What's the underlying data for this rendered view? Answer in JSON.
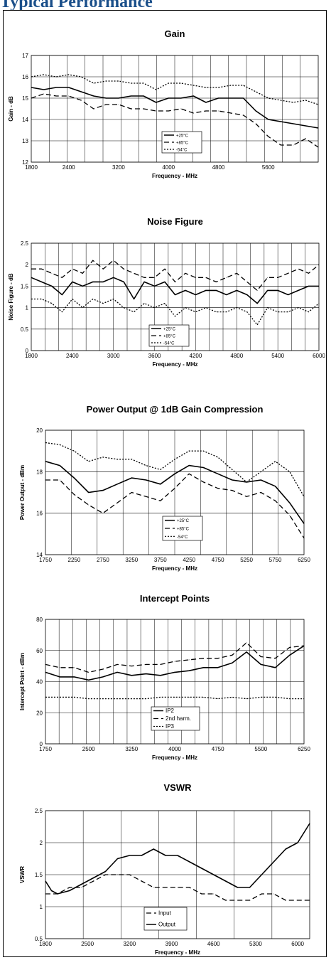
{
  "page": {
    "heading": "Typical Performance"
  },
  "chart_data": [
    {
      "type": "line",
      "title": "Gain",
      "xlabel": "Frequency - MHz",
      "ylabel": "Gain - dB",
      "xlim": [
        1800,
        6400
      ],
      "ylim": [
        12,
        17
      ],
      "xticks": [
        1800,
        2400,
        3200,
        4000,
        4800,
        5600
      ],
      "yticks": [
        12,
        13,
        14,
        15,
        16,
        17
      ],
      "grid": true,
      "legend_position": "bottom-center",
      "series": [
        {
          "name": "+25°C",
          "style": "solid",
          "x": [
            1800,
            2000,
            2200,
            2400,
            2600,
            2800,
            3000,
            3200,
            3400,
            3600,
            3800,
            4000,
            4200,
            4400,
            4600,
            4800,
            5000,
            5200,
            5400,
            5600,
            5800,
            6000,
            6200,
            6400
          ],
          "y": [
            15.5,
            15.4,
            15.5,
            15.5,
            15.3,
            15.1,
            15.0,
            15.0,
            15.1,
            15.1,
            14.8,
            15.0,
            15.0,
            15.1,
            14.8,
            15.0,
            15.0,
            15.0,
            14.4,
            14.0,
            13.9,
            13.8,
            13.7,
            13.6
          ]
        },
        {
          "name": "+85°C",
          "style": "dashed",
          "x": [
            1800,
            2000,
            2200,
            2400,
            2600,
            2800,
            3000,
            3200,
            3400,
            3600,
            3800,
            4000,
            4200,
            4400,
            4600,
            4800,
            5000,
            5200,
            5400,
            5600,
            5800,
            6000,
            6200,
            6400
          ],
          "y": [
            15.0,
            15.2,
            15.1,
            15.1,
            14.9,
            14.5,
            14.7,
            14.7,
            14.5,
            14.5,
            14.4,
            14.4,
            14.5,
            14.3,
            14.4,
            14.4,
            14.3,
            14.2,
            13.8,
            13.2,
            12.8,
            12.8,
            13.1,
            12.7
          ]
        },
        {
          "name": "-54°C",
          "style": "dotted",
          "x": [
            1800,
            2000,
            2200,
            2400,
            2600,
            2800,
            3000,
            3200,
            3400,
            3600,
            3800,
            4000,
            4200,
            4400,
            4600,
            4800,
            5000,
            5200,
            5400,
            5600,
            5800,
            6000,
            6200,
            6400
          ],
          "y": [
            16.0,
            16.1,
            16.0,
            16.1,
            16.0,
            15.7,
            15.8,
            15.8,
            15.7,
            15.7,
            15.4,
            15.7,
            15.7,
            15.6,
            15.5,
            15.5,
            15.6,
            15.6,
            15.3,
            15.0,
            14.9,
            14.8,
            14.9,
            14.7
          ]
        }
      ]
    },
    {
      "type": "line",
      "title": "Noise Figure",
      "xlabel": "Frequency - MHz",
      "ylabel": "Noise Figure - dB",
      "xlim": [
        1800,
        6000
      ],
      "ylim": [
        0,
        2.5
      ],
      "xticks": [
        1800,
        2400,
        3000,
        3600,
        4200,
        4800,
        5400,
        6000
      ],
      "yticks": [
        0,
        0.5,
        1,
        1.5,
        2,
        2.5
      ],
      "grid": true,
      "legend_position": "bottom-center",
      "series": [
        {
          "name": "+25°C",
          "style": "solid",
          "x": [
            1800,
            1950,
            2100,
            2250,
            2400,
            2550,
            2700,
            2850,
            3000,
            3150,
            3300,
            3450,
            3600,
            3750,
            3900,
            4050,
            4200,
            4350,
            4500,
            4650,
            4800,
            4950,
            5100,
            5250,
            5400,
            5550,
            5700,
            5850,
            6000
          ],
          "y": [
            1.7,
            1.6,
            1.5,
            1.3,
            1.6,
            1.5,
            1.6,
            1.6,
            1.7,
            1.6,
            1.2,
            1.6,
            1.5,
            1.6,
            1.3,
            1.4,
            1.3,
            1.4,
            1.4,
            1.3,
            1.4,
            1.3,
            1.1,
            1.4,
            1.4,
            1.3,
            1.4,
            1.5,
            1.5
          ]
        },
        {
          "name": "+85°C",
          "style": "dashed",
          "x": [
            1800,
            1950,
            2100,
            2250,
            2400,
            2550,
            2700,
            2850,
            3000,
            3150,
            3300,
            3450,
            3600,
            3750,
            3900,
            4050,
            4200,
            4350,
            4500,
            4650,
            4800,
            4950,
            5100,
            5250,
            5400,
            5550,
            5700,
            5850,
            6000
          ],
          "y": [
            1.9,
            1.9,
            1.8,
            1.7,
            1.9,
            1.8,
            2.1,
            1.9,
            2.1,
            1.9,
            1.8,
            1.7,
            1.7,
            1.9,
            1.6,
            1.8,
            1.7,
            1.7,
            1.6,
            1.7,
            1.8,
            1.6,
            1.4,
            1.7,
            1.7,
            1.8,
            1.9,
            1.8,
            2.0
          ]
        },
        {
          "name": "-54°C",
          "style": "dotted",
          "x": [
            1800,
            1950,
            2100,
            2250,
            2400,
            2550,
            2700,
            2850,
            3000,
            3150,
            3300,
            3450,
            3600,
            3750,
            3900,
            4050,
            4200,
            4350,
            4500,
            4650,
            4800,
            4950,
            5100,
            5250,
            5400,
            5550,
            5700,
            5850,
            6000
          ],
          "y": [
            1.2,
            1.2,
            1.1,
            0.9,
            1.2,
            1.0,
            1.2,
            1.1,
            1.2,
            1.0,
            0.9,
            1.1,
            1.0,
            1.1,
            0.8,
            1.0,
            0.9,
            1.0,
            0.9,
            0.9,
            1.0,
            0.9,
            0.6,
            1.0,
            0.9,
            0.9,
            1.0,
            0.9,
            1.1
          ]
        }
      ]
    },
    {
      "type": "line",
      "title": "Power Output @ 1dB Gain Compression",
      "xlabel": "Frequency - MHz",
      "ylabel": "Power Output - dBm",
      "xlim": [
        1750,
        6250
      ],
      "ylim": [
        14,
        20
      ],
      "xticks": [
        1750,
        2250,
        2750,
        3250,
        3750,
        4250,
        4750,
        5250,
        5750,
        6250
      ],
      "yticks": [
        14,
        16,
        18,
        20
      ],
      "grid": true,
      "legend_position": "bottom-center",
      "series": [
        {
          "name": "+25°C",
          "style": "solid",
          "x": [
            1750,
            2000,
            2250,
            2500,
            2750,
            3000,
            3250,
            3500,
            3750,
            4000,
            4250,
            4500,
            4750,
            5000,
            5250,
            5500,
            5750,
            6000,
            6250
          ],
          "y": [
            18.5,
            18.3,
            17.7,
            17.0,
            17.1,
            17.4,
            17.7,
            17.6,
            17.4,
            17.9,
            18.3,
            18.2,
            17.9,
            17.6,
            17.5,
            17.6,
            17.3,
            16.5,
            15.5
          ]
        },
        {
          "name": "+85°C",
          "style": "dashed",
          "x": [
            1750,
            2000,
            2250,
            2500,
            2750,
            3000,
            3250,
            3500,
            3750,
            4000,
            4250,
            4500,
            4750,
            5000,
            5250,
            5500,
            5750,
            6000,
            6250
          ],
          "y": [
            17.6,
            17.6,
            16.9,
            16.4,
            16.0,
            16.5,
            17.0,
            16.8,
            16.6,
            17.2,
            17.9,
            17.5,
            17.2,
            17.1,
            16.8,
            17.0,
            16.6,
            15.9,
            14.8
          ]
        },
        {
          "name": "-54°C",
          "style": "dotted",
          "x": [
            1750,
            2000,
            2250,
            2500,
            2750,
            3000,
            3250,
            3500,
            3750,
            4000,
            4250,
            4500,
            4750,
            5000,
            5250,
            5500,
            5750,
            6000,
            6250
          ],
          "y": [
            19.4,
            19.3,
            19.0,
            18.5,
            18.7,
            18.6,
            18.6,
            18.3,
            18.1,
            18.6,
            19.0,
            19.0,
            18.7,
            18.1,
            17.5,
            18.0,
            18.5,
            18.0,
            16.8
          ]
        }
      ]
    },
    {
      "type": "line",
      "title": "Intercept Points",
      "xlabel": "Frequency - MHz",
      "ylabel": "Intercept Point - dBm",
      "xlim": [
        1750,
        6250
      ],
      "ylim": [
        0,
        80
      ],
      "xticks": [
        1750,
        2500,
        3250,
        4000,
        4750,
        5500,
        6250
      ],
      "yticks": [
        0,
        20,
        40,
        60,
        80
      ],
      "grid": true,
      "legend_position": "bottom-center",
      "series": [
        {
          "name": "IP2",
          "style": "solid",
          "x": [
            1750,
            2000,
            2250,
            2500,
            2750,
            3000,
            3250,
            3500,
            3750,
            4000,
            4250,
            4500,
            4750,
            5000,
            5250,
            5500,
            5750,
            6000,
            6250
          ],
          "y": [
            46,
            43,
            43,
            41,
            43,
            46,
            44,
            45,
            44,
            46,
            47,
            49,
            49,
            52,
            59,
            51,
            49,
            57,
            63
          ]
        },
        {
          "name": "2nd harm.",
          "style": "dashed",
          "x": [
            1750,
            2000,
            2250,
            2500,
            2750,
            3000,
            3250,
            3500,
            3750,
            4000,
            4250,
            4500,
            4750,
            5000,
            5250,
            5500,
            5750,
            6000,
            6250
          ],
          "y": [
            51,
            49,
            49,
            46,
            48,
            51,
            50,
            51,
            51,
            53,
            54,
            55,
            55,
            57,
            65,
            56,
            55,
            62,
            63
          ]
        },
        {
          "name": "IP3",
          "style": "dotted",
          "x": [
            1750,
            2000,
            2250,
            2500,
            2750,
            3000,
            3250,
            3500,
            3750,
            4000,
            4250,
            4500,
            4750,
            5000,
            5250,
            5500,
            5750,
            6000,
            6250
          ],
          "y": [
            30,
            30,
            30,
            29,
            29,
            29,
            29,
            29,
            30,
            30,
            30,
            30,
            29,
            30,
            29,
            30,
            30,
            29,
            29
          ]
        }
      ]
    },
    {
      "type": "line",
      "title": "VSWR",
      "xlabel": "Frequency - MHz",
      "ylabel": "VSWR",
      "xlim": [
        1800,
        6200
      ],
      "ylim": [
        0.5,
        2.5
      ],
      "xticks": [
        1800,
        2500,
        3200,
        3900,
        4600,
        5300,
        6000
      ],
      "yticks": [
        0.5,
        1,
        1.5,
        2,
        2.5
      ],
      "grid": true,
      "legend_position": "bottom-center",
      "series": [
        {
          "name": "Input",
          "style": "dashed",
          "x": [
            1800,
            2000,
            2200,
            2400,
            2600,
            2800,
            3000,
            3200,
            3400,
            3600,
            3800,
            4000,
            4200,
            4400,
            4600,
            4800,
            5000,
            5200,
            5400,
            5600,
            5800,
            6000,
            6200
          ],
          "y": [
            1.2,
            1.2,
            1.3,
            1.3,
            1.4,
            1.5,
            1.5,
            1.5,
            1.4,
            1.3,
            1.3,
            1.3,
            1.3,
            1.2,
            1.2,
            1.1,
            1.1,
            1.1,
            1.2,
            1.2,
            1.1,
            1.1,
            1.1
          ]
        },
        {
          "name": "Output",
          "style": "solid",
          "x": [
            1800,
            1900,
            2000,
            2200,
            2400,
            2600,
            2800,
            3000,
            3200,
            3400,
            3600,
            3800,
            4000,
            4200,
            4400,
            4600,
            4800,
            5000,
            5200,
            5400,
            5600,
            5800,
            6000,
            6200
          ],
          "y": [
            1.4,
            1.25,
            1.2,
            1.25,
            1.35,
            1.45,
            1.55,
            1.75,
            1.8,
            1.8,
            1.9,
            1.8,
            1.8,
            1.7,
            1.6,
            1.5,
            1.4,
            1.3,
            1.3,
            1.5,
            1.7,
            1.9,
            2.0,
            2.3
          ]
        }
      ]
    }
  ]
}
